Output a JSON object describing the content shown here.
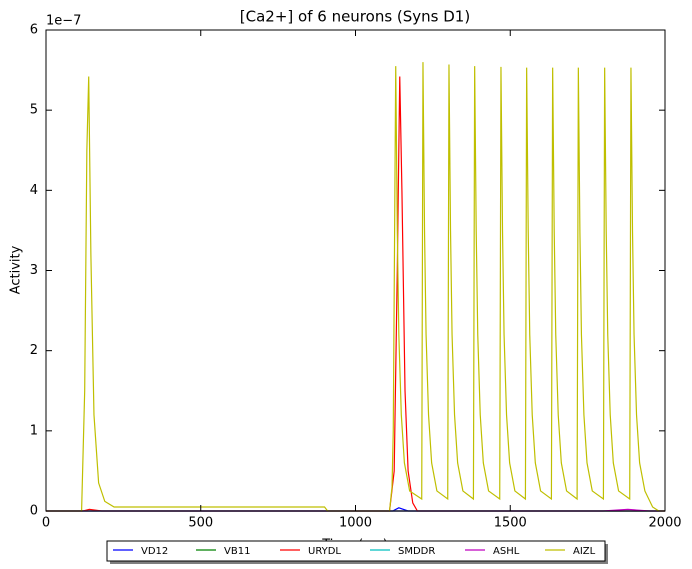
{
  "chart_data": {
    "type": "line",
    "title": "[Ca2+] of 6 neurons (Syns D1)",
    "x_label": "Time (ms)",
    "y_label": "Activity",
    "y_offset_label": "1e−7",
    "xlim": [
      0,
      2000
    ],
    "xticks": [
      0,
      500,
      1000,
      1500,
      2000
    ],
    "ylim": [
      0,
      6
    ],
    "yticks": [
      0,
      1,
      2,
      3,
      4,
      5,
      6
    ],
    "legend": "lower-center-outside",
    "series": [
      {
        "name": "VD12",
        "color": "#0000ff",
        "x": [
          0,
          1120,
          1140,
          1170,
          2000
        ],
        "values": [
          0,
          0,
          0.04,
          0,
          0
        ]
      },
      {
        "name": "VB11",
        "color": "#008000",
        "x": [
          0,
          2000
        ],
        "values": [
          0,
          0
        ]
      },
      {
        "name": "URYDL",
        "color": "#ff0000",
        "x": [
          0,
          120,
          140,
          180,
          1110,
          1125,
          1135,
          1143,
          1150,
          1160,
          1170,
          1185,
          1200,
          2000
        ],
        "values": [
          0,
          0,
          0.02,
          0,
          0,
          0.5,
          3.0,
          5.42,
          4.0,
          1.5,
          0.5,
          0.1,
          0,
          0
        ]
      },
      {
        "name": "SMDDR",
        "color": "#00bfbf",
        "x": [
          0,
          2000
        ],
        "values": [
          0,
          0
        ]
      },
      {
        "name": "ASHL",
        "color": "#bf00bf",
        "x": [
          0,
          1800,
          1880,
          1950,
          2000
        ],
        "values": [
          0,
          0,
          0.02,
          0,
          0
        ]
      },
      {
        "name": "AIZL",
        "color": "#bfbf00",
        "x": [
          0,
          115,
          125,
          132,
          138,
          145,
          155,
          170,
          190,
          220,
          900,
          910,
          1110,
          1118,
          1122,
          1130,
          1135,
          1140,
          1148,
          1158,
          1175,
          1214,
          1218,
          1223,
          1228,
          1236,
          1246,
          1263,
          1298,
          1302,
          1307,
          1312,
          1320,
          1330,
          1347,
          1381,
          1385,
          1390,
          1395,
          1403,
          1413,
          1430,
          1466,
          1470,
          1475,
          1480,
          1488,
          1498,
          1515,
          1549,
          1553,
          1558,
          1563,
          1571,
          1581,
          1598,
          1633,
          1637,
          1642,
          1647,
          1655,
          1665,
          1682,
          1716,
          1720,
          1725,
          1730,
          1738,
          1748,
          1765,
          1801,
          1805,
          1810,
          1815,
          1823,
          1833,
          1850,
          1886,
          1890,
          1895,
          1900,
          1908,
          1918,
          1935,
          1960,
          1980,
          2000
        ],
        "values": [
          0,
          0,
          1.5,
          4.5,
          5.42,
          3.2,
          1.2,
          0.35,
          0.12,
          0.05,
          0.05,
          0,
          0,
          0.3,
          1.0,
          5.55,
          3.5,
          2.2,
          1.2,
          0.6,
          0.25,
          0.15,
          5.6,
          3.5,
          2.2,
          1.2,
          0.6,
          0.25,
          0.15,
          5.57,
          3.5,
          2.2,
          1.2,
          0.6,
          0.25,
          0.15,
          5.55,
          3.5,
          2.2,
          1.2,
          0.6,
          0.25,
          0.15,
          5.54,
          3.5,
          2.2,
          1.2,
          0.6,
          0.25,
          0.15,
          5.53,
          3.5,
          2.2,
          1.2,
          0.6,
          0.25,
          0.15,
          5.53,
          3.5,
          2.2,
          1.2,
          0.6,
          0.25,
          0.15,
          5.53,
          3.5,
          2.2,
          1.2,
          0.6,
          0.25,
          0.15,
          5.53,
          3.5,
          2.2,
          1.2,
          0.6,
          0.25,
          0.15,
          5.53,
          3.5,
          2.2,
          1.2,
          0.6,
          0.25,
          0.05,
          0,
          0
        ]
      }
    ]
  }
}
